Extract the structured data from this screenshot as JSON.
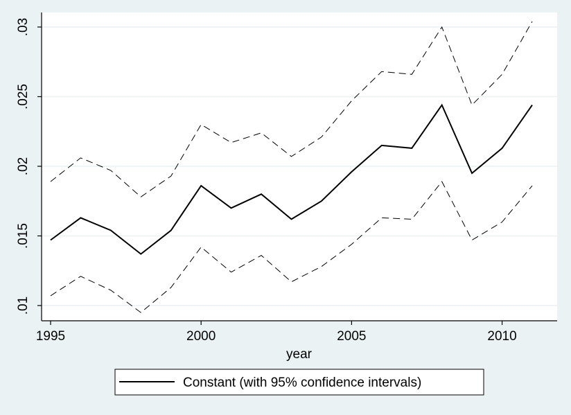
{
  "chart_data": {
    "type": "line",
    "title": "",
    "xlabel": "year",
    "ylabel": "",
    "xlim": [
      1995,
      2011
    ],
    "ylim": [
      0.01,
      0.03
    ],
    "xticks": [
      1995,
      2000,
      2005,
      2010
    ],
    "xtick_labels": [
      "1995",
      "2000",
      "2005",
      "2010"
    ],
    "yticks": [
      0.01,
      0.015,
      0.02,
      0.025,
      0.03
    ],
    "ytick_labels": [
      ".01",
      ".015",
      ".02",
      ".025",
      ".03"
    ],
    "grid": true,
    "legend": {
      "placement": "bottom",
      "label": "Constant (with 95% confidence intervals)"
    },
    "x": [
      1995,
      1996,
      1997,
      1998,
      1999,
      2000,
      2001,
      2002,
      2003,
      2004,
      2005,
      2006,
      2007,
      2008,
      2009,
      2010,
      2011
    ],
    "series": [
      {
        "name": "Constant (with 95% confidence intervals)",
        "style": "solid",
        "values": [
          0.0147,
          0.0163,
          0.0154,
          0.0137,
          0.0154,
          0.0186,
          0.017,
          0.018,
          0.0162,
          0.0175,
          0.0196,
          0.0215,
          0.0213,
          0.0244,
          0.0195,
          0.0213,
          0.0244
        ]
      },
      {
        "style": "dashed",
        "values": [
          0.0189,
          0.0206,
          0.0197,
          0.0178,
          0.0193,
          0.023,
          0.0217,
          0.0224,
          0.0207,
          0.0221,
          0.0247,
          0.0268,
          0.0266,
          0.03,
          0.0244,
          0.0266,
          0.0304
        ]
      },
      {
        "style": "dashed",
        "values": [
          0.0107,
          0.0121,
          0.0111,
          0.0095,
          0.0113,
          0.0142,
          0.0124,
          0.0136,
          0.0117,
          0.0128,
          0.0144,
          0.0163,
          0.0162,
          0.0189,
          0.0147,
          0.016,
          0.0186
        ]
      }
    ],
    "colors": {
      "background": "#eaf2f3",
      "plot_background": "#ffffff",
      "gridline": "#eaf2f3",
      "lines": "#000000"
    }
  }
}
